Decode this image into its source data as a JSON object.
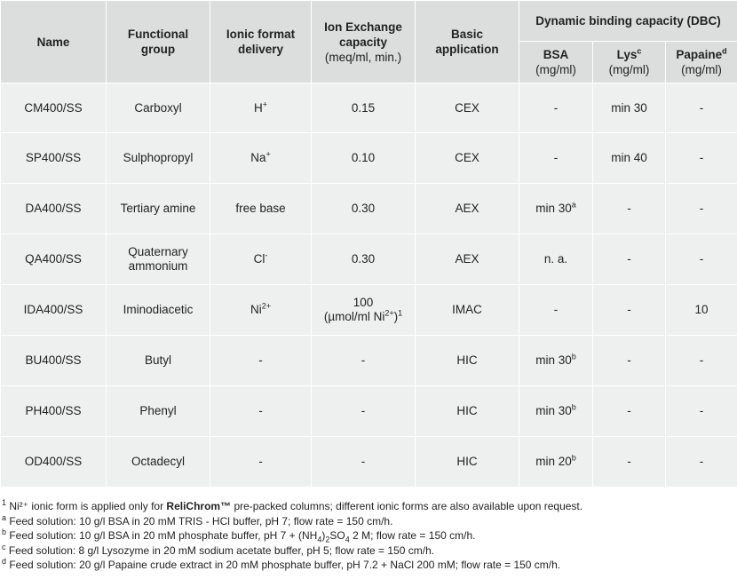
{
  "table": {
    "headers": {
      "name": "Name",
      "functional_group": "Functional group",
      "ionic_format": "Ionic format delivery",
      "iex_title": "Ion Exchange capacity",
      "iex_unit": "(meq/ml, min.)",
      "basic_application": "Basic application",
      "dbc": "Dynamic binding capacity (DBC)",
      "bsa": "BSA",
      "bsa_unit": "(mg/ml)",
      "lys": "Lys",
      "lys_sup": "c",
      "lys_unit": "(mg/ml)",
      "papaine": "Papaine",
      "papaine_sup": "d",
      "papaine_unit": "(mg/ml)"
    },
    "rows": [
      {
        "name": "CM400/SS",
        "group": "Carboxyl",
        "ion": "H",
        "ion_sup": "+",
        "iex": "0.15",
        "iex_line2": "",
        "iex_line2_sup": "",
        "iex_line2_end": "",
        "iex_line2_sup2": "",
        "app": "CEX",
        "bsa": "-",
        "bsa_sup": "",
        "lys": "min 30",
        "pap": "-"
      },
      {
        "name": "SP400/SS",
        "group": "Sulphopropyl",
        "ion": "Na",
        "ion_sup": "+",
        "iex": "0.10",
        "iex_line2": "",
        "iex_line2_sup": "",
        "iex_line2_end": "",
        "iex_line2_sup2": "",
        "app": "CEX",
        "bsa": "-",
        "bsa_sup": "",
        "lys": "min 40",
        "pap": "-"
      },
      {
        "name": "DA400/SS",
        "group": "Tertiary amine",
        "ion": "free base",
        "ion_sup": "",
        "iex": "0.30",
        "iex_line2": "",
        "iex_line2_sup": "",
        "iex_line2_end": "",
        "iex_line2_sup2": "",
        "app": "AEX",
        "bsa": "min 30",
        "bsa_sup": "a",
        "lys": "-",
        "pap": "-"
      },
      {
        "name": "QA400/SS",
        "group": "Quaternary ammonium",
        "ion": "Cl",
        "ion_sup": "-",
        "iex": "0.30",
        "iex_line2": "",
        "iex_line2_sup": "",
        "iex_line2_end": "",
        "iex_line2_sup2": "",
        "app": "AEX",
        "bsa": "n. a.",
        "bsa_sup": "",
        "lys": "-",
        "pap": "-"
      },
      {
        "name": "IDA400/SS",
        "group": "Iminodiacetic",
        "ion": "Ni",
        "ion_sup": "2+",
        "iex": "100",
        "iex_line2": "(µmol/ml Ni",
        "iex_line2_sup": "2+",
        "iex_line2_end": ")",
        "iex_line2_sup2": "1",
        "app": "IMAC",
        "bsa": "-",
        "bsa_sup": "",
        "lys": "-",
        "pap": "10"
      },
      {
        "name": "BU400/SS",
        "group": "Butyl",
        "ion": "-",
        "ion_sup": "",
        "iex": "-",
        "iex_line2": "",
        "iex_line2_sup": "",
        "iex_line2_end": "",
        "iex_line2_sup2": "",
        "app": "HIC",
        "bsa": "min 30",
        "bsa_sup": "b",
        "lys": "-",
        "pap": "-"
      },
      {
        "name": "PH400/SS",
        "group": "Phenyl",
        "ion": "-",
        "ion_sup": "",
        "iex": "-",
        "iex_line2": "",
        "iex_line2_sup": "",
        "iex_line2_end": "",
        "iex_line2_sup2": "",
        "app": "HIC",
        "bsa": "min 30",
        "bsa_sup": "b",
        "lys": "-",
        "pap": "-"
      },
      {
        "name": "OD400/SS",
        "group": "Octadecyl",
        "ion": "-",
        "ion_sup": "",
        "iex": "-",
        "iex_line2": "",
        "iex_line2_sup": "",
        "iex_line2_end": "",
        "iex_line2_sup2": "",
        "app": "HIC",
        "bsa": "min 20",
        "bsa_sup": "b",
        "lys": "-",
        "pap": "-"
      }
    ]
  },
  "footnotes": {
    "n1": {
      "mark": "1",
      "pre": " Ni²⁺ ionic form is applied only for ",
      "brand": "ReliChrom™",
      "post": " pre-packed columns; different ionic forms are also available upon request."
    },
    "na": {
      "mark": "a",
      "text": " Feed solution: 10 g/l BSA in 20 mM TRIS - HCl buffer, pH 7; flow rate = 150 cm/h."
    },
    "nb": {
      "mark": "b",
      "pre": " Feed solution: 10 g/l BSA in 20 mM phosphate buffer, pH 7 + (NH",
      "sub1": "4",
      "mid": ")",
      "sub2": "2",
      "mid2": "SO",
      "sub3": "4",
      "post": " 2 M; flow rate = 150 cm/h."
    },
    "nc": {
      "mark": "c",
      "text": " Feed solution: 8 g/l Lysozyme in 20 mM sodium acetate buffer, pH 5; flow rate = 150 cm/h."
    },
    "nd": {
      "mark": "d",
      "text": " Feed solution: 20 g/l Papaine crude extract in 20 mM phosphate buffer, pH 7.2 + NaCl 200 mM; flow rate = 150 cm/h."
    }
  }
}
